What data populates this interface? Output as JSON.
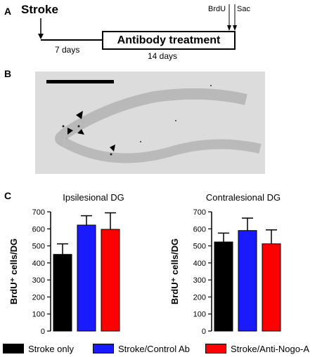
{
  "panels": {
    "a": "A",
    "b": "B",
    "c": "C"
  },
  "timeline": {
    "stroke_label": "Stroke",
    "treatment_label": "Antibody treatment",
    "days_before": "7 days",
    "days_treatment": "14 days",
    "brdu_label": "BrdU",
    "sac_label": "Sac"
  },
  "colors": {
    "stroke_only": "#000000",
    "control_ab": "#1a1aff",
    "anti_nogo": "#ff0000",
    "micrograph_bg": "#d9d9d9"
  },
  "legend": [
    {
      "label": "Stroke only",
      "color": "#000000"
    },
    {
      "label": "Stroke/Control Ab",
      "color": "#1a1aff"
    },
    {
      "label": "Stroke/Anti-Nogo-A",
      "color": "#ff0000"
    }
  ],
  "chart_data": [
    {
      "type": "bar",
      "title": "Ipsilesional DG",
      "ylabel": "BrdU⁺ cells/DG",
      "ylim": [
        0,
        700
      ],
      "yticks": [
        "0",
        "100",
        "200",
        "300",
        "400",
        "500",
        "600",
        "700"
      ],
      "categories": [
        "Stroke only",
        "Stroke/Control Ab",
        "Stroke/Anti-Nogo-A"
      ],
      "values": [
        450,
        622,
        597
      ],
      "errors": [
        62,
        55,
        97
      ],
      "colors": [
        "#000000",
        "#1a1aff",
        "#ff0000"
      ]
    },
    {
      "type": "bar",
      "title": "Contralesional DG",
      "ylabel": "BrdU⁺ cells/DG",
      "ylim": [
        0,
        700
      ],
      "yticks": [
        "0",
        "100",
        "200",
        "300",
        "400",
        "500",
        "600",
        "700"
      ],
      "categories": [
        "Stroke only",
        "Stroke/Control Ab",
        "Stroke/Anti-Nogo-A"
      ],
      "values": [
        523,
        590,
        512
      ],
      "errors": [
        52,
        73,
        82
      ],
      "colors": [
        "#000000",
        "#1a1aff",
        "#ff0000"
      ]
    }
  ]
}
